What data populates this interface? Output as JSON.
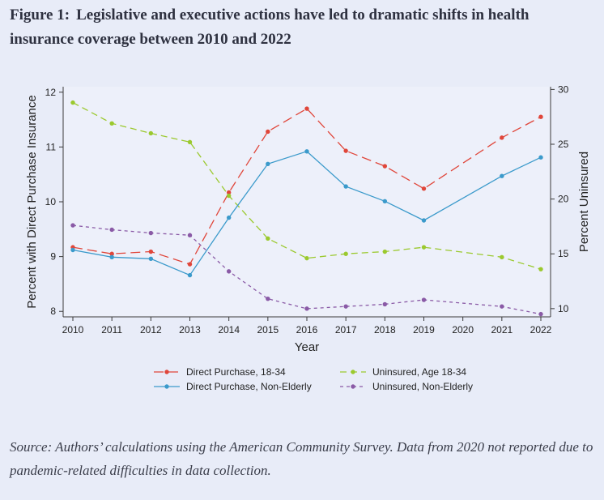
{
  "figure": {
    "number": "Figure 1:",
    "title": "Legislative and executive actions have led to dramatic shifts in health insurance coverage between 2010 and 2022",
    "source": "Source:  Authors’ calculations using the American Community Survey.  Data from 2020 not reported due to pandemic-related difficulties in data collection."
  },
  "chart_data": {
    "type": "line",
    "xlabel": "Year",
    "ylabel_left": "Percent with Direct Purchase Insurance",
    "ylabel_right": "Percent Uninsured",
    "x_ticks": [
      "2010",
      "2011",
      "2012",
      "2013",
      "2014",
      "2015",
      "2016",
      "2017",
      "2018",
      "2019",
      "2020",
      "2021",
      "2022"
    ],
    "y_left_ticks": [
      "8",
      "9",
      "10",
      "11",
      "12"
    ],
    "y_right_ticks": [
      "10",
      "15",
      "20",
      "25",
      "30"
    ],
    "ylim_left": [
      7.9,
      12.1
    ],
    "ylim_right": [
      9.25,
      30.25
    ],
    "xlim": [
      2010,
      2022
    ],
    "grid": false,
    "legend_position": "bottom",
    "series": [
      {
        "name": "Direct Purchase, 18-34",
        "axis": "left",
        "color": "#e0463a",
        "dash": "long",
        "x": [
          2010,
          2011,
          2012,
          2013,
          2014,
          2015,
          2016,
          2017,
          2018,
          2019,
          2021,
          2022
        ],
        "values": [
          9.17,
          9.05,
          9.09,
          8.86,
          10.17,
          11.28,
          11.7,
          10.93,
          10.65,
          10.24,
          11.17,
          11.55
        ]
      },
      {
        "name": "Uninsured, Age 18-34",
        "axis": "right",
        "color": "#9bc92e",
        "dash": "medium",
        "x": [
          2010,
          2011,
          2012,
          2013,
          2014,
          2015,
          2016,
          2017,
          2018,
          2019,
          2021,
          2022
        ],
        "values": [
          28.8,
          26.9,
          26.0,
          25.2,
          20.3,
          16.4,
          14.6,
          15.0,
          15.2,
          15.6,
          14.7,
          13.6
        ]
      },
      {
        "name": "Direct Purchase, Non-Elderly",
        "axis": "left",
        "color": "#3b9acb",
        "dash": "solid",
        "x": [
          2010,
          2011,
          2012,
          2013,
          2014,
          2015,
          2016,
          2017,
          2018,
          2019,
          2021,
          2022
        ],
        "values": [
          9.12,
          8.99,
          8.96,
          8.66,
          9.71,
          10.69,
          10.92,
          10.28,
          10.01,
          9.66,
          10.47,
          10.81
        ]
      },
      {
        "name": "Uninsured, Non-Elderly",
        "axis": "right",
        "color": "#8a5aa6",
        "dash": "short",
        "x": [
          2010,
          2011,
          2012,
          2013,
          2014,
          2015,
          2016,
          2017,
          2018,
          2019,
          2021,
          2022
        ],
        "values": [
          17.6,
          17.2,
          16.9,
          16.7,
          13.4,
          10.9,
          10.0,
          10.2,
          10.4,
          10.8,
          10.2,
          9.5
        ]
      }
    ]
  }
}
